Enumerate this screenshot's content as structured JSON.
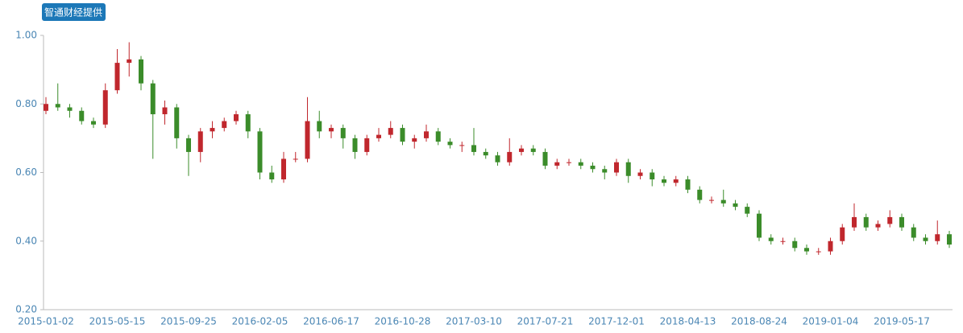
{
  "chart_data": {
    "type": "candlestick",
    "title": "智通财经提供",
    "categories": [
      "2015-01-02",
      null,
      null,
      null,
      null,
      null,
      "2015-05-15",
      null,
      null,
      null,
      null,
      null,
      "2015-09-25",
      null,
      null,
      null,
      null,
      null,
      "2016-02-05",
      null,
      null,
      null,
      null,
      null,
      "2016-06-17",
      null,
      null,
      null,
      null,
      null,
      "2016-10-28",
      null,
      null,
      null,
      null,
      null,
      "2017-03-10",
      null,
      null,
      null,
      null,
      null,
      "2017-07-21",
      null,
      null,
      null,
      null,
      null,
      "2017-12-01",
      null,
      null,
      null,
      null,
      null,
      "2018-04-13",
      null,
      null,
      null,
      null,
      null,
      "2018-08-24",
      null,
      null,
      null,
      null,
      null,
      "2019-01-04",
      null,
      null,
      null,
      null,
      null,
      "2019-05-17",
      null,
      null,
      null,
      null
    ],
    "open": [
      0.78,
      0.8,
      0.79,
      0.78,
      0.75,
      0.74,
      0.84,
      0.92,
      0.93,
      0.86,
      0.77,
      0.79,
      0.7,
      0.66,
      0.72,
      0.73,
      0.75,
      0.77,
      0.72,
      0.6,
      0.58,
      0.64,
      0.64,
      0.75,
      0.72,
      0.73,
      0.7,
      0.66,
      0.7,
      0.71,
      0.73,
      0.69,
      0.7,
      0.72,
      0.69,
      0.68,
      0.68,
      0.66,
      0.65,
      0.63,
      0.66,
      0.67,
      0.66,
      0.62,
      0.63,
      0.63,
      0.62,
      0.61,
      0.6,
      0.63,
      0.59,
      0.6,
      0.58,
      0.57,
      0.58,
      0.55,
      0.52,
      0.52,
      0.51,
      0.5,
      0.48,
      0.41,
      0.4,
      0.4,
      0.38,
      0.37,
      0.37,
      0.4,
      0.44,
      0.47,
      0.44,
      0.45,
      0.47,
      0.44,
      0.41,
      0.4,
      0.42
    ],
    "close": [
      0.8,
      0.79,
      0.78,
      0.75,
      0.74,
      0.84,
      0.92,
      0.93,
      0.86,
      0.77,
      0.79,
      0.7,
      0.66,
      0.72,
      0.73,
      0.75,
      0.77,
      0.72,
      0.6,
      0.58,
      0.64,
      0.64,
      0.75,
      0.72,
      0.73,
      0.7,
      0.66,
      0.7,
      0.71,
      0.73,
      0.69,
      0.7,
      0.72,
      0.69,
      0.68,
      0.68,
      0.66,
      0.65,
      0.63,
      0.66,
      0.67,
      0.66,
      0.62,
      0.63,
      0.63,
      0.62,
      0.61,
      0.6,
      0.63,
      0.59,
      0.6,
      0.58,
      0.57,
      0.58,
      0.55,
      0.52,
      0.52,
      0.51,
      0.5,
      0.48,
      0.41,
      0.4,
      0.4,
      0.38,
      0.37,
      0.37,
      0.4,
      0.44,
      0.47,
      0.44,
      0.45,
      0.47,
      0.44,
      0.41,
      0.4,
      0.42,
      0.39
    ],
    "high": [
      0.82,
      0.86,
      0.8,
      0.79,
      0.76,
      0.86,
      0.96,
      0.98,
      0.94,
      0.87,
      0.81,
      0.8,
      0.71,
      0.73,
      0.75,
      0.76,
      0.78,
      0.78,
      0.73,
      0.62,
      0.66,
      0.66,
      0.82,
      0.78,
      0.74,
      0.74,
      0.71,
      0.71,
      0.73,
      0.75,
      0.74,
      0.71,
      0.74,
      0.73,
      0.7,
      0.69,
      0.73,
      0.67,
      0.66,
      0.7,
      0.68,
      0.68,
      0.67,
      0.64,
      0.64,
      0.64,
      0.63,
      0.62,
      0.64,
      0.64,
      0.61,
      0.61,
      0.59,
      0.59,
      0.59,
      0.56,
      0.53,
      0.55,
      0.52,
      0.51,
      0.49,
      0.42,
      0.41,
      0.41,
      0.39,
      0.38,
      0.41,
      0.45,
      0.51,
      0.48,
      0.46,
      0.49,
      0.48,
      0.45,
      0.42,
      0.46,
      0.43
    ],
    "low": [
      0.77,
      0.78,
      0.76,
      0.74,
      0.73,
      0.73,
      0.83,
      0.88,
      0.84,
      0.64,
      0.74,
      0.67,
      0.59,
      0.63,
      0.7,
      0.72,
      0.74,
      0.7,
      0.58,
      0.57,
      0.57,
      0.63,
      0.63,
      0.7,
      0.7,
      0.67,
      0.64,
      0.65,
      0.69,
      0.7,
      0.68,
      0.67,
      0.69,
      0.68,
      0.67,
      0.66,
      0.65,
      0.64,
      0.62,
      0.62,
      0.65,
      0.65,
      0.61,
      0.61,
      0.62,
      0.61,
      0.6,
      0.58,
      0.59,
      0.57,
      0.58,
      0.56,
      0.56,
      0.56,
      0.54,
      0.51,
      0.51,
      0.5,
      0.49,
      0.47,
      0.4,
      0.39,
      0.39,
      0.37,
      0.36,
      0.36,
      0.36,
      0.39,
      0.43,
      0.43,
      0.43,
      0.44,
      0.43,
      0.4,
      0.39,
      0.39,
      0.38
    ],
    "up_color": "#c0272d",
    "down_color": "#3b8c2a",
    "ylim": [
      0.2,
      1.0
    ],
    "yticks": [
      {
        "value": 0.2,
        "label": "0.20"
      },
      {
        "value": 0.4,
        "label": "0.40"
      },
      {
        "value": 0.6,
        "label": "0.60"
      },
      {
        "value": 0.8,
        "label": "0.80"
      },
      {
        "value": 1.0,
        "label": "1.00"
      }
    ]
  }
}
